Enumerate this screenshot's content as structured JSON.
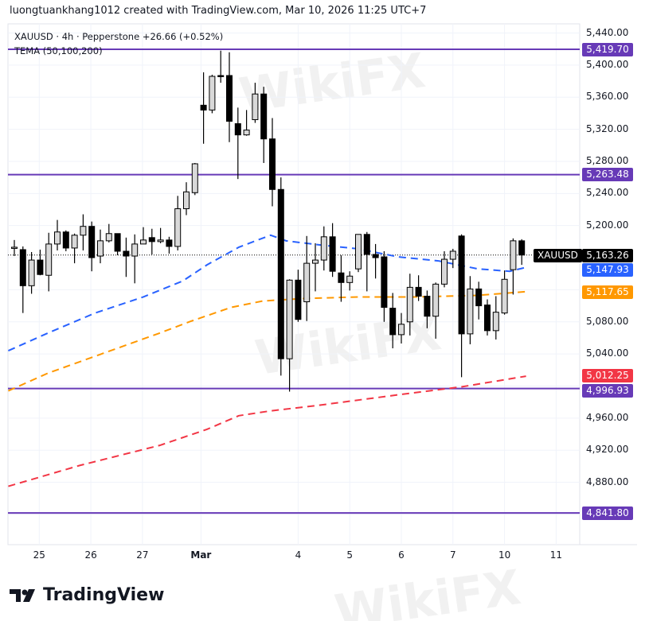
{
  "header": {
    "credit": "luongtuankhang1012 created with TradingView.com, Mar 10, 2026 11:25 UTC+7",
    "symbol_line": "XAUUSD · 4h · Pepperstone  +26.66 (+0.52%)",
    "indicator_line": "TEMA (50,100,200)"
  },
  "watermark": "WikiFX",
  "footer": {
    "logo_text": "TradingView"
  },
  "colors": {
    "up": "#d9d9d9",
    "down": "#000000",
    "level": "#673ab7",
    "tema50": "#2962ff",
    "tema100": "#ff9800",
    "tema200": "#f23645",
    "grid": "#f0f3fa"
  },
  "chart_data": {
    "type": "candlestick",
    "symbol": "XAUUSD",
    "timeframe": "4h",
    "ylim": [
      4810,
      5450
    ],
    "y_ticks": [
      "5,440.00",
      "5,400.00",
      "5,360.00",
      "5,320.00",
      "5,280.00",
      "5,240.00",
      "5,200.00",
      "5,080.00",
      "5,040.00",
      "4,960.00",
      "4,920.00",
      "4,880.00"
    ],
    "y_tick_values": [
      5440,
      5400,
      5360,
      5320,
      5280,
      5240,
      5200,
      5080,
      5040,
      4960,
      4920,
      4880
    ],
    "x_ticks": [
      {
        "label": "25",
        "bar": 2.9
      },
      {
        "label": "26",
        "bar": 8.9
      },
      {
        "label": "27",
        "bar": 14.9
      },
      {
        "label": "Mar",
        "bar": 21.7
      },
      {
        "label": "4",
        "bar": 33
      },
      {
        "label": "5",
        "bar": 39
      },
      {
        "label": "6",
        "bar": 45
      },
      {
        "label": "7",
        "bar": 51
      },
      {
        "label": "10",
        "bar": 57
      },
      {
        "label": "11",
        "bar": 63
      }
    ],
    "candles": [
      [
        5172,
        5182,
        5162,
        5173
      ],
      [
        5170,
        5174,
        5091,
        5125
      ],
      [
        5125,
        5167,
        5115,
        5157
      ],
      [
        5157,
        5170,
        5138,
        5139
      ],
      [
        5138,
        5191,
        5118,
        5177
      ],
      [
        5177,
        5207,
        5169,
        5192
      ],
      [
        5192,
        5194,
        5168,
        5172
      ],
      [
        5172,
        5190,
        5153,
        5188
      ],
      [
        5188,
        5214,
        5169,
        5199
      ],
      [
        5199,
        5205,
        5143,
        5160
      ],
      [
        5162,
        5195,
        5153,
        5181
      ],
      [
        5181,
        5202,
        5179,
        5190
      ],
      [
        5190,
        5190,
        5163,
        5168
      ],
      [
        5168,
        5185,
        5136,
        5162
      ],
      [
        5162,
        5189,
        5128,
        5177
      ],
      [
        5177,
        5198,
        5177,
        5182
      ],
      [
        5185,
        5196,
        5164,
        5180
      ],
      [
        5180,
        5197,
        5178,
        5182
      ],
      [
        5182,
        5186,
        5165,
        5174
      ],
      [
        5174,
        5237,
        5169,
        5221
      ],
      [
        5221,
        5254,
        5213,
        5242
      ],
      [
        5241,
        5278,
        5238,
        5277
      ],
      [
        5350,
        5391,
        5302,
        5344
      ],
      [
        5344,
        5388,
        5340,
        5386
      ],
      [
        5387,
        5418,
        5378,
        5386
      ],
      [
        5387,
        5416,
        5304,
        5330
      ],
      [
        5327,
        5347,
        5258,
        5313
      ],
      [
        5313,
        5344,
        5312,
        5319
      ],
      [
        5332,
        5378,
        5328,
        5364
      ],
      [
        5364,
        5373,
        5278,
        5308
      ],
      [
        5308,
        5334,
        5224,
        5245
      ],
      [
        5245,
        5260,
        5013,
        5034
      ],
      [
        5034,
        5133,
        4993,
        5132
      ],
      [
        5132,
        5145,
        5080,
        5083
      ],
      [
        5105,
        5187,
        5081,
        5153
      ],
      [
        5153,
        5178,
        5118,
        5157
      ],
      [
        5157,
        5199,
        5144,
        5186
      ],
      [
        5186,
        5203,
        5136,
        5143
      ],
      [
        5141,
        5163,
        5105,
        5129
      ],
      [
        5129,
        5143,
        5119,
        5137
      ],
      [
        5146,
        5189,
        5142,
        5189
      ],
      [
        5189,
        5192,
        5118,
        5164
      ],
      [
        5164,
        5177,
        5134,
        5160
      ],
      [
        5161,
        5168,
        5080,
        5098
      ],
      [
        5097,
        5116,
        5047,
        5064
      ],
      [
        5064,
        5091,
        5053,
        5077
      ],
      [
        5080,
        5140,
        5063,
        5123
      ],
      [
        5123,
        5138,
        5106,
        5112
      ],
      [
        5112,
        5119,
        5072,
        5087
      ],
      [
        5087,
        5129,
        5059,
        5127
      ],
      [
        5127,
        5168,
        5123,
        5158
      ],
      [
        5158,
        5171,
        5147,
        5168
      ],
      [
        5187,
        5189,
        5011,
        5065
      ],
      [
        5065,
        5137,
        5052,
        5121
      ],
      [
        5121,
        5130,
        5083,
        5100
      ],
      [
        5101,
        5108,
        5063,
        5069
      ],
      [
        5069,
        5112,
        5058,
        5092
      ],
      [
        5091,
        5144,
        5089,
        5133
      ],
      [
        5145,
        5184,
        5114,
        5181
      ],
      [
        5181,
        5183,
        5151,
        5163.26
      ]
    ],
    "candle_format": [
      "open",
      "high",
      "low",
      "close"
    ],
    "series": [
      {
        "name": "TEMA 50",
        "style": "dashed",
        "points": [
          [
            -0.7,
            5044
          ],
          [
            3.9,
            5066
          ],
          [
            9.4,
            5091
          ],
          [
            15,
            5111
          ],
          [
            19.6,
            5131
          ],
          [
            22.4,
            5151
          ],
          [
            26.1,
            5173
          ],
          [
            29.8,
            5188
          ],
          [
            31.6,
            5181
          ],
          [
            35.4,
            5176
          ],
          [
            40,
            5171
          ],
          [
            44.6,
            5161
          ],
          [
            49.3,
            5156
          ],
          [
            53.9,
            5146
          ],
          [
            57.6,
            5143
          ],
          [
            59.5,
            5147.93
          ]
        ]
      },
      {
        "name": "TEMA 100",
        "style": "dashed",
        "points": [
          [
            -0.7,
            4994
          ],
          [
            3.9,
            5016
          ],
          [
            10.4,
            5041
          ],
          [
            16.9,
            5066
          ],
          [
            20.6,
            5081
          ],
          [
            25.2,
            5098
          ],
          [
            28.9,
            5106
          ],
          [
            33.5,
            5109
          ],
          [
            40,
            5111
          ],
          [
            46.5,
            5111
          ],
          [
            53.9,
            5113
          ],
          [
            59.5,
            5117.65
          ]
        ]
      },
      {
        "name": "TEMA 200",
        "style": "dashed",
        "points": [
          [
            -0.7,
            4875
          ],
          [
            7.6,
            4901
          ],
          [
            16.9,
            4926
          ],
          [
            22.4,
            4946
          ],
          [
            26.1,
            4963
          ],
          [
            29.8,
            4969
          ],
          [
            35.4,
            4976
          ],
          [
            44.6,
            4989
          ],
          [
            52,
            4999
          ],
          [
            59.5,
            5012.25
          ]
        ]
      }
    ],
    "levels": [
      5419.7,
      5263.48,
      4996.93,
      4841.8
    ],
    "last_price": 5163.26,
    "badges": [
      {
        "text": "5,419.70",
        "color": "#673ab7",
        "value": 5419.7
      },
      {
        "text": "5,263.48",
        "color": "#673ab7",
        "value": 5263.48
      },
      {
        "text": "5,163.26",
        "color": "#000000",
        "value": 5163.26
      },
      {
        "text": "5,147.93",
        "color": "#2962ff",
        "value": 5147.93
      },
      {
        "text": "5,117.65",
        "color": "#ff9800",
        "value": 5117.65
      },
      {
        "text": "5,012.25",
        "color": "#f23645",
        "value": 5012.25
      },
      {
        "text": "4,996.93",
        "color": "#673ab7",
        "value": 4996.93
      },
      {
        "text": "4,841.80",
        "color": "#673ab7",
        "value": 4841.8
      }
    ],
    "symbol_tag": "XAUUSD",
    "grid": true
  }
}
